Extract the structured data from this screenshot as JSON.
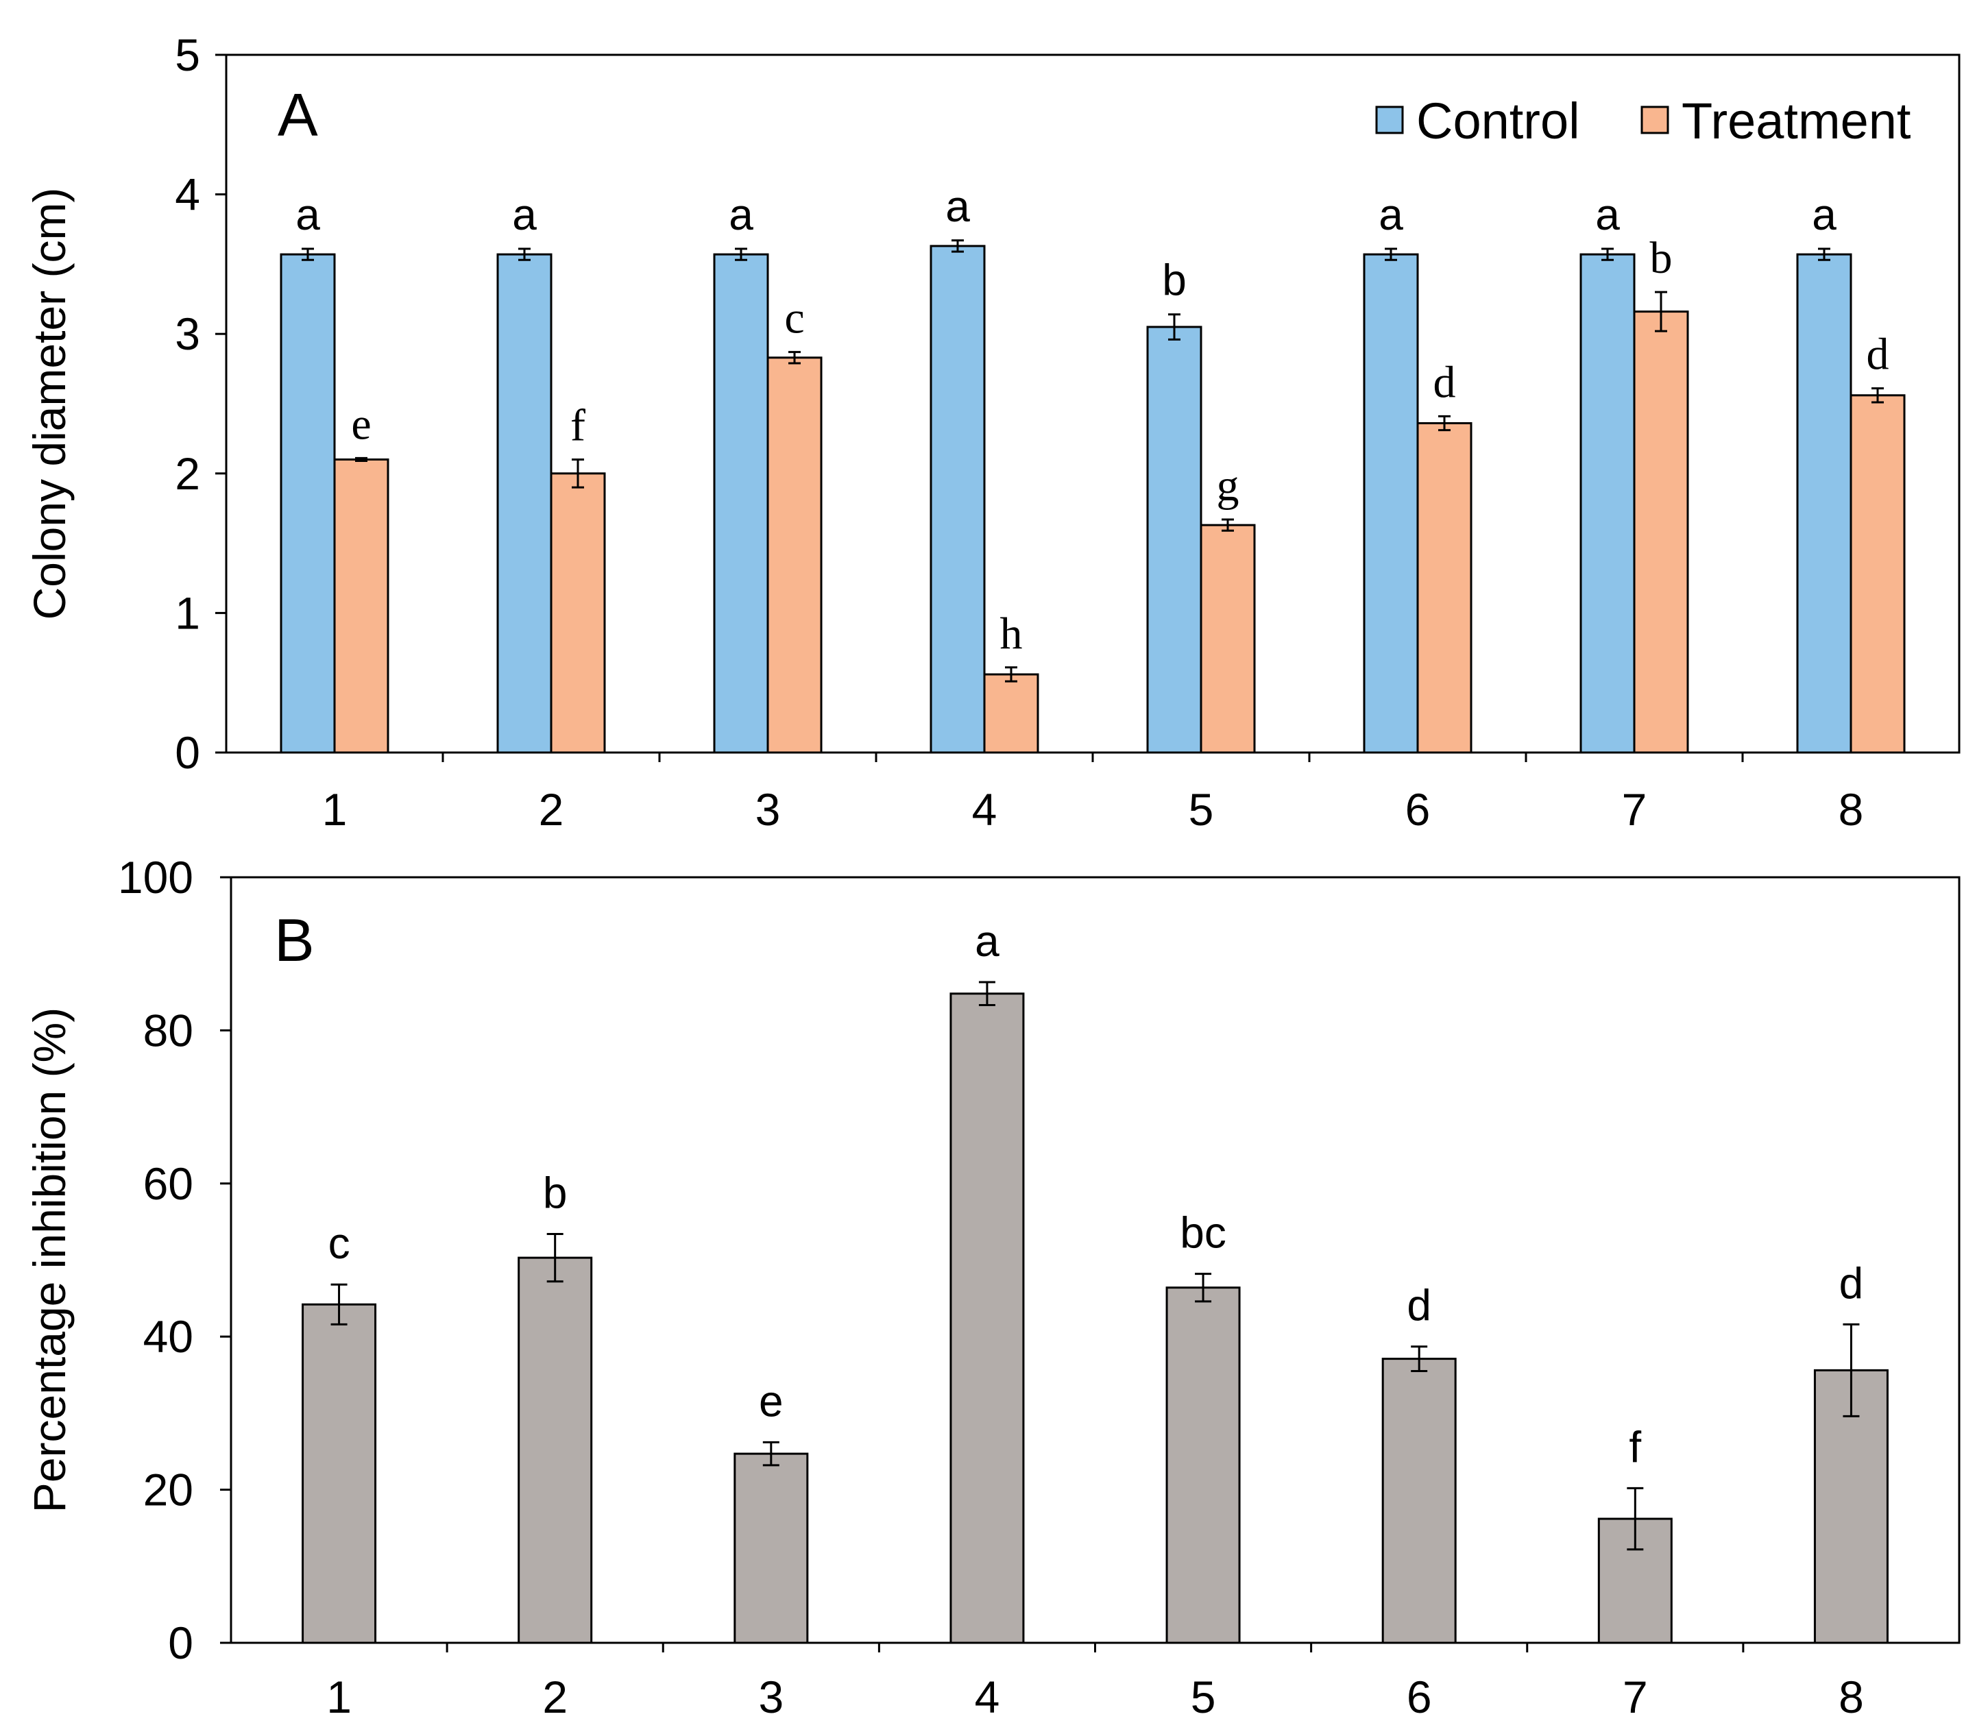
{
  "chart_data": [
    {
      "panel": "A",
      "type": "bar",
      "xlabel": "",
      "ylabel": "Colony diameter (cm)",
      "ylim": [
        0,
        5
      ],
      "yticks": [
        "0",
        "1",
        "2",
        "3",
        "4",
        "5"
      ],
      "categories": [
        "1",
        "2",
        "3",
        "4",
        "5",
        "6",
        "7",
        "8"
      ],
      "legend_position": "top-right",
      "series": [
        {
          "name": "Control",
          "color": "#8dc3e9",
          "values": [
            3.57,
            3.57,
            3.57,
            3.63,
            3.05,
            3.57,
            3.57,
            3.57
          ],
          "errors": [
            0.04,
            0.04,
            0.04,
            0.04,
            0.09,
            0.04,
            0.04,
            0.04
          ],
          "letters": [
            "a",
            "a",
            "a",
            "a",
            "b",
            "a",
            "a",
            "a"
          ]
        },
        {
          "name": "Treatment",
          "color": "#f9b68f",
          "values": [
            2.1,
            2.0,
            2.83,
            0.56,
            1.63,
            2.36,
            3.16,
            2.56
          ],
          "errors": [
            0.01,
            0.1,
            0.04,
            0.05,
            0.04,
            0.05,
            0.14,
            0.05
          ],
          "letters": [
            "e",
            "f",
            "c",
            "h",
            "g",
            "d",
            "b",
            "d"
          ]
        }
      ]
    },
    {
      "panel": "B",
      "type": "bar",
      "xlabel": "",
      "ylabel": "Percentage inhibition (%)",
      "ylim": [
        0,
        100
      ],
      "yticks": [
        "0",
        "20",
        "40",
        "60",
        "80",
        "100"
      ],
      "categories": [
        "1",
        "2",
        "3",
        "4",
        "5",
        "6",
        "7",
        "8"
      ],
      "series": [
        {
          "name": "Percentage inhibition",
          "color": "#b3adaa",
          "values": [
            44.2,
            50.3,
            24.7,
            84.8,
            46.4,
            37.1,
            16.2,
            35.6
          ],
          "errors": [
            2.6,
            3.1,
            1.5,
            1.5,
            1.8,
            1.6,
            4.0,
            6.0
          ],
          "letters": [
            "c",
            "b",
            "e",
            "a",
            "bc",
            "d",
            "f",
            "d"
          ]
        }
      ]
    }
  ]
}
